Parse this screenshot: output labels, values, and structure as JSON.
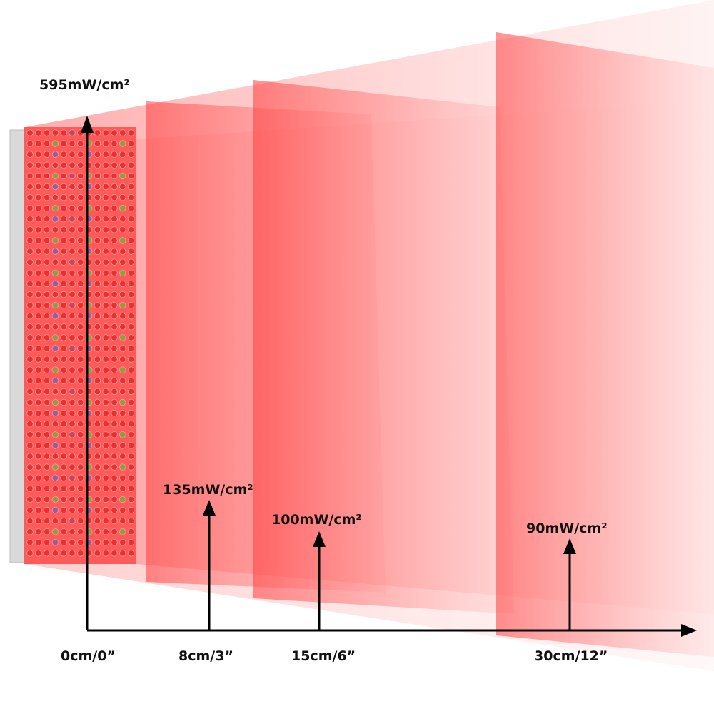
{
  "irradiance_labels": [
    "595mW/cm²",
    "135mW/cm²",
    "100mW/cm²",
    "90mW/cm²"
  ],
  "distance_labels": [
    "0cm/0”",
    "8cm/3”",
    "15cm/6”",
    "30cm/12”"
  ]
}
